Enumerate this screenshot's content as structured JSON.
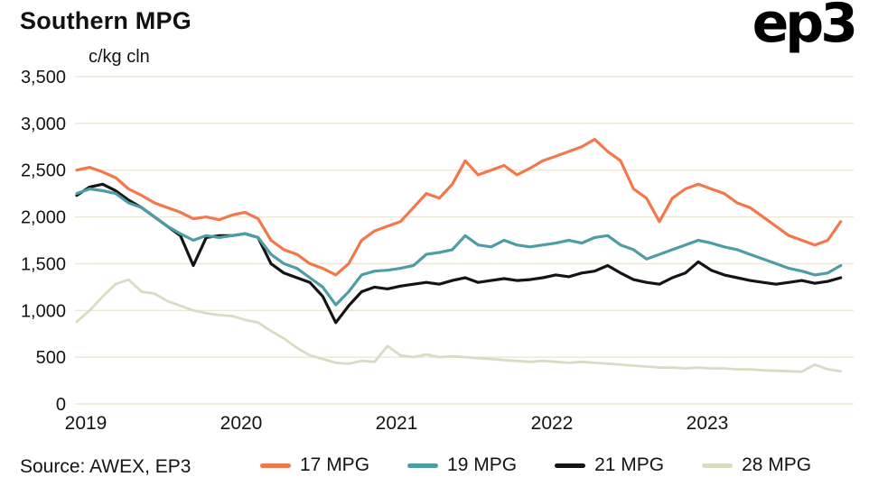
{
  "header": {
    "title": "Southern MPG",
    "logo": "ep3"
  },
  "footer": {
    "source": "Source: AWEX, EP3"
  },
  "chart_data": {
    "type": "line",
    "title": "Southern MPG",
    "xlabel": "",
    "ylabel": "c/kg cln",
    "xlim": [
      2019,
      2024
    ],
    "ylim": [
      0,
      3500
    ],
    "grid": "horizontal",
    "legend_position": "bottom",
    "colors": {
      "grid": "#EDE6D6",
      "text": "#141414",
      "background": "#FFFFFF"
    },
    "x_ticks": [
      2019,
      2020,
      2021,
      2022,
      2023
    ],
    "x_tick_labels": [
      "2019",
      "2020",
      "2021",
      "2022",
      "2023"
    ],
    "y_ticks": [
      0,
      500,
      1000,
      1500,
      2000,
      2500,
      3000,
      3500
    ],
    "y_tick_labels": [
      "0",
      "500",
      "1,000",
      "1,500",
      "2,000",
      "2,500",
      "3,000",
      "3,500"
    ],
    "x_start": 2019.0,
    "x_step_months": 1,
    "series": [
      {
        "name": "17 MPG",
        "color": "#F2784B",
        "width": 3.2,
        "values": [
          2500,
          2530,
          2480,
          2420,
          2300,
          2230,
          2150,
          2100,
          2050,
          1980,
          2000,
          1970,
          2020,
          2050,
          1980,
          1750,
          1650,
          1600,
          1500,
          1450,
          1380,
          1500,
          1750,
          1850,
          1900,
          1950,
          2100,
          2250,
          2200,
          2350,
          2600,
          2450,
          2500,
          2550,
          2450,
          2520,
          2600,
          2650,
          2700,
          2750,
          2830,
          2700,
          2600,
          2300,
          2200,
          1950,
          2200,
          2300,
          2350,
          2300,
          2250,
          2150,
          2100,
          2000,
          1900,
          1800,
          1750,
          1700,
          1750,
          1950
        ]
      },
      {
        "name": "19 MPG",
        "color": "#4E9CA6",
        "width": 3.2,
        "values": [
          2250,
          2300,
          2280,
          2250,
          2150,
          2100,
          2000,
          1900,
          1820,
          1750,
          1800,
          1780,
          1800,
          1820,
          1780,
          1600,
          1500,
          1450,
          1350,
          1250,
          1060,
          1200,
          1380,
          1420,
          1430,
          1450,
          1480,
          1600,
          1620,
          1650,
          1800,
          1700,
          1680,
          1750,
          1700,
          1680,
          1700,
          1720,
          1750,
          1720,
          1780,
          1800,
          1700,
          1650,
          1550,
          1600,
          1650,
          1700,
          1750,
          1720,
          1680,
          1650,
          1600,
          1550,
          1500,
          1450,
          1420,
          1380,
          1400,
          1480
        ]
      },
      {
        "name": "21 MPG",
        "color": "#141414",
        "width": 3.2,
        "values": [
          2230,
          2320,
          2350,
          2280,
          2180,
          2100,
          2000,
          1900,
          1800,
          1480,
          1780,
          1800,
          1800,
          1820,
          1780,
          1500,
          1400,
          1350,
          1300,
          1150,
          870,
          1050,
          1200,
          1250,
          1230,
          1260,
          1280,
          1300,
          1280,
          1320,
          1350,
          1300,
          1320,
          1340,
          1320,
          1330,
          1350,
          1380,
          1360,
          1400,
          1420,
          1480,
          1400,
          1330,
          1300,
          1280,
          1350,
          1400,
          1520,
          1430,
          1380,
          1350,
          1320,
          1300,
          1280,
          1300,
          1320,
          1290,
          1310,
          1350
        ]
      },
      {
        "name": "28 MPG",
        "color": "#D8DCC3",
        "width": 2.8,
        "values": [
          880,
          1000,
          1150,
          1280,
          1330,
          1200,
          1180,
          1100,
          1050,
          1000,
          970,
          950,
          940,
          900,
          870,
          780,
          700,
          600,
          520,
          480,
          440,
          430,
          460,
          450,
          620,
          520,
          500,
          530,
          500,
          510,
          500,
          490,
          480,
          470,
          460,
          450,
          460,
          450,
          440,
          450,
          440,
          430,
          420,
          410,
          400,
          390,
          390,
          380,
          390,
          380,
          380,
          370,
          370,
          360,
          355,
          350,
          345,
          420,
          370,
          350
        ]
      }
    ]
  }
}
